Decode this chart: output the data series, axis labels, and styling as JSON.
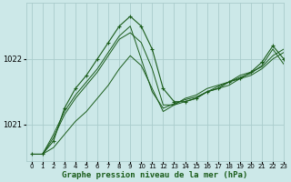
{
  "title": "Graphe pression niveau de la mer (hPa)",
  "background_color": "#cce8e8",
  "grid_color": "#aacccc",
  "line_color": "#1a5c1a",
  "xlim": [
    -0.5,
    23
  ],
  "ylim": [
    1020.45,
    1022.85
  ],
  "yticks": [
    1021,
    1022
  ],
  "xticks": [
    0,
    1,
    2,
    3,
    4,
    5,
    6,
    7,
    8,
    9,
    10,
    11,
    12,
    13,
    14,
    15,
    16,
    17,
    18,
    19,
    20,
    21,
    22,
    23
  ],
  "series_with_markers": [
    [
      1020.55,
      1020.55,
      1020.75,
      1021.25,
      1021.55,
      1021.75,
      1022.0,
      1022.25,
      1022.5,
      1022.65,
      1022.5,
      1022.15,
      1021.55,
      1021.35,
      1021.35,
      1021.4,
      1021.5,
      1021.55,
      1021.65,
      1021.7,
      1021.8,
      1021.95,
      1022.2,
      1022.0
    ]
  ],
  "series_no_markers": [
    [
      1020.55,
      1020.55,
      1020.65,
      1020.85,
      1021.05,
      1021.2,
      1021.4,
      1021.6,
      1021.85,
      1022.05,
      1021.9,
      1021.55,
      1021.2,
      1021.3,
      1021.4,
      1021.45,
      1021.55,
      1021.6,
      1021.65,
      1021.75,
      1021.8,
      1021.88,
      1022.05,
      1022.15
    ],
    [
      1020.55,
      1020.55,
      1020.8,
      1021.15,
      1021.4,
      1021.6,
      1021.8,
      1022.05,
      1022.3,
      1022.4,
      1022.25,
      1021.85,
      1021.3,
      1021.3,
      1021.35,
      1021.4,
      1021.5,
      1021.55,
      1021.6,
      1021.7,
      1021.75,
      1021.85,
      1022.0,
      1022.1
    ],
    [
      1020.55,
      1020.55,
      1020.85,
      1021.2,
      1021.45,
      1021.65,
      1021.85,
      1022.1,
      1022.35,
      1022.5,
      1022.0,
      1021.5,
      1021.25,
      1021.32,
      1021.38,
      1021.42,
      1021.5,
      1021.58,
      1021.65,
      1021.72,
      1021.78,
      1021.9,
      1022.15,
      1021.92
    ]
  ]
}
